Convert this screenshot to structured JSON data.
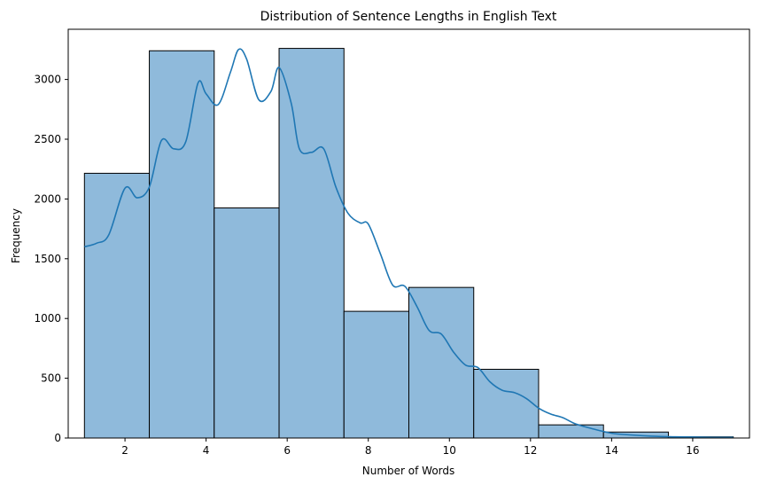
{
  "chart_data": {
    "type": "bar",
    "title": "Distribution of Sentence Lengths in English Text",
    "xlabel": "Number of Words",
    "ylabel": "Frequency",
    "xlim": [
      0.6,
      17.4
    ],
    "ylim": [
      0,
      3420
    ],
    "bins": [
      {
        "x0": 1.0,
        "x1": 2.6,
        "value": 2215
      },
      {
        "x0": 2.6,
        "x1": 4.2,
        "value": 3240
      },
      {
        "x0": 4.2,
        "x1": 5.8,
        "value": 1925
      },
      {
        "x0": 5.8,
        "x1": 7.4,
        "value": 3260
      },
      {
        "x0": 7.4,
        "x1": 9.0,
        "value": 1060
      },
      {
        "x0": 9.0,
        "x1": 10.6,
        "value": 1260
      },
      {
        "x0": 10.6,
        "x1": 12.2,
        "value": 575
      },
      {
        "x0": 12.2,
        "x1": 13.8,
        "value": 110
      },
      {
        "x0": 13.8,
        "x1": 15.4,
        "value": 50
      },
      {
        "x0": 15.4,
        "x1": 17.0,
        "value": 10
      }
    ],
    "kde": {
      "x": [
        1.0,
        1.3,
        1.6,
        2.0,
        2.3,
        2.6,
        2.9,
        3.2,
        3.5,
        3.8,
        4.0,
        4.3,
        4.6,
        4.8,
        5.0,
        5.3,
        5.6,
        5.8,
        6.1,
        6.3,
        6.6,
        6.9,
        7.2,
        7.5,
        7.8,
        8.0,
        8.3,
        8.6,
        8.9,
        9.2,
        9.5,
        9.8,
        10.1,
        10.4,
        10.7,
        11.0,
        11.3,
        11.6,
        11.9,
        12.2,
        12.5,
        12.8,
        13.1,
        13.5,
        14.0,
        14.5,
        15.0,
        15.5,
        16.0,
        16.5,
        17.0
      ],
      "y": [
        1600,
        1630,
        1700,
        2090,
        2010,
        2100,
        2490,
        2420,
        2480,
        2970,
        2880,
        2790,
        3060,
        3250,
        3170,
        2830,
        2900,
        3100,
        2800,
        2420,
        2390,
        2420,
        2100,
        1880,
        1800,
        1790,
        1540,
        1280,
        1270,
        1100,
        900,
        870,
        720,
        610,
        590,
        470,
        400,
        380,
        330,
        250,
        200,
        170,
        120,
        80,
        40,
        25,
        15,
        10,
        8,
        5,
        5
      ]
    },
    "x_ticks": [
      2,
      4,
      6,
      8,
      10,
      12,
      14,
      16
    ],
    "y_ticks": [
      0,
      500,
      1000,
      1500,
      2000,
      2500,
      3000
    ],
    "grid": false,
    "bar_color": "#8fbadb",
    "line_color": "#1f77b4"
  }
}
